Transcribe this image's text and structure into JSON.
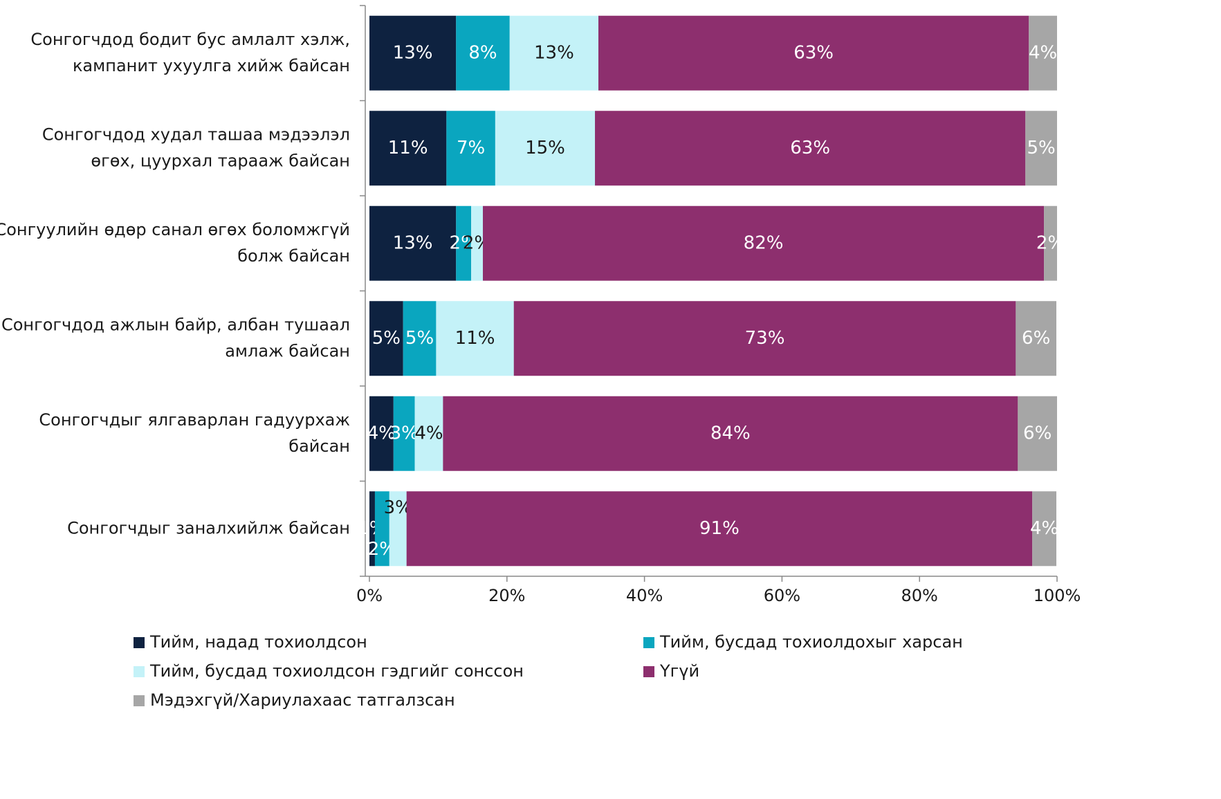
{
  "chart_data": {
    "type": "stacked_bar_horizontal",
    "categories": [
      "Сонгогчдод бодит бус амлалт хэлж,\nкампанит ухуулга хийж байсан",
      "Сонгогчдод худал ташаа   мэдээлэл\nөгөх, цуурхал тарааж байсан",
      "Сонгуулийн өдөр санал өгөх боломжгүй\nболж байсан",
      "Сонгогчдод ажлын байр, албан тушаал\nамлаж байсан",
      "Сонгогчдыг ялгаварлан гадуурхаж\nбайсан",
      "Сонгогчдыг заналхийлж байсан"
    ],
    "series": [
      {
        "name": "Тийм, надад тохиолдсон",
        "color": "#0e2240",
        "values": [
          12.6,
          11.2,
          12.6,
          4.9,
          3.5,
          0.8
        ],
        "value_labels": [
          "13%",
          "11%",
          "13%",
          "5%",
          "4%",
          "1%"
        ]
      },
      {
        "name": "Тийм, бусдад тохиолдохыг харсан",
        "color": "#0aa6bf",
        "values": [
          7.8,
          7.1,
          2.2,
          4.8,
          3.1,
          2.1
        ],
        "value_labels": [
          "8%",
          "7%",
          "2%",
          "5%",
          "3%",
          "2%"
        ]
      },
      {
        "name": "Тийм, бусдад тохиолдсон гэдгийг сонссон",
        "color": "#c4f2f8",
        "values": [
          12.9,
          14.5,
          1.7,
          11.3,
          4.1,
          2.5
        ],
        "value_labels": [
          "13%",
          "15%",
          "2%",
          "11%",
          "4%",
          "3%"
        ]
      },
      {
        "name": "Үгүй",
        "color": "#8d2f6e",
        "values": [
          62.6,
          62.6,
          81.6,
          73.0,
          83.6,
          91.0
        ],
        "value_labels": [
          "63%",
          "63%",
          "82%",
          "73%",
          "84%",
          "91%"
        ]
      },
      {
        "name": "Мэдэхгүй/Хариулахаас татгалзсан",
        "color": "#a6a6a6",
        "values": [
          4.1,
          4.6,
          1.9,
          5.9,
          5.7,
          3.5
        ],
        "value_labels": [
          "4%",
          "5%",
          "2%",
          "6%",
          "6%",
          "4%"
        ]
      }
    ],
    "xlim": [
      0,
      100
    ],
    "xticks": [
      {
        "value": 0,
        "label": "0%"
      },
      {
        "value": 20,
        "label": "20%"
      },
      {
        "value": 40,
        "label": "40%"
      },
      {
        "value": 60,
        "label": "60%"
      },
      {
        "value": 80,
        "label": "80%"
      },
      {
        "value": 100,
        "label": "100%"
      }
    ]
  }
}
